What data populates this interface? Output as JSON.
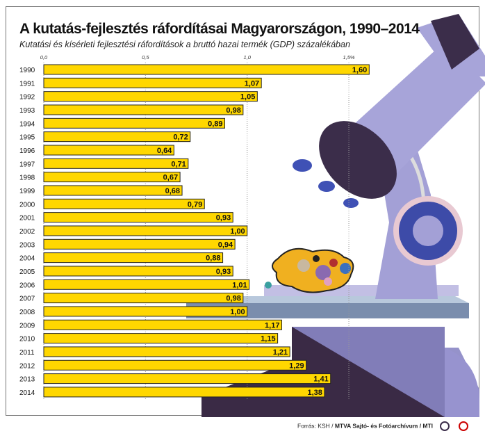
{
  "chart_data": {
    "type": "bar",
    "orientation": "horizontal",
    "title": "A kutatás-fejlesztés ráfordításai Magyarországon, 1990–2014",
    "subtitle": "Kutatási és kísérleti fejlesztési ráfordítások a bruttó hazai termék (GDP) százalékában",
    "categories": [
      "1990",
      "1991",
      "1992",
      "1993",
      "1994",
      "1995",
      "1996",
      "1997",
      "1998",
      "1999",
      "2000",
      "2001",
      "2002",
      "2003",
      "2004",
      "2005",
      "2006",
      "2007",
      "2008",
      "2009",
      "2010",
      "2011",
      "2012",
      "2013",
      "2014"
    ],
    "values": [
      1.6,
      1.07,
      1.05,
      0.98,
      0.89,
      0.72,
      0.64,
      0.71,
      0.67,
      0.68,
      0.79,
      0.93,
      1.0,
      0.94,
      0.88,
      0.93,
      1.01,
      0.98,
      1.0,
      1.17,
      1.15,
      1.21,
      1.29,
      1.41,
      1.38
    ],
    "value_labels": [
      "1,60",
      "1,07",
      "1,05",
      "0,98",
      "0,89",
      "0,72",
      "0,64",
      "0,71",
      "0,67",
      "0,68",
      "0,79",
      "0,93",
      "1,00",
      "0,94",
      "0,88",
      "0,93",
      "1,01",
      "0,98",
      "1,00",
      "1,17",
      "1,15",
      "1,21",
      "1,29",
      "1,41",
      "1,38"
    ],
    "xticks": [
      0,
      0.5,
      1.0,
      1.5
    ],
    "xtick_labels": [
      "0,0",
      "0,5",
      "1,0",
      "1,5%"
    ],
    "xlim": [
      0,
      1.6
    ],
    "grid": true,
    "bar_color": "#ffd700"
  },
  "footer": {
    "source_prefix": "Forrás: KSH / ",
    "source_bold": "MTVA Sajtó- és Fotóarchívum / MTI"
  }
}
